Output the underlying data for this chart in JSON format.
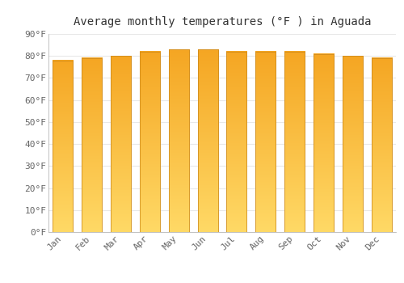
{
  "title": "Average monthly temperatures (°F ) in Aguada",
  "months": [
    "Jan",
    "Feb",
    "Mar",
    "Apr",
    "May",
    "Jun",
    "Jul",
    "Aug",
    "Sep",
    "Oct",
    "Nov",
    "Dec"
  ],
  "values": [
    78,
    79,
    80,
    82,
    83,
    83,
    82,
    82,
    82,
    81,
    80,
    79
  ],
  "bar_color_top": "#F5A623",
  "bar_color_bottom": "#FFD966",
  "bar_edge_color": "#C8851A",
  "background_color": "#FFFFFF",
  "plot_bg_color": "#FFFFFF",
  "grid_color": "#E8E8E8",
  "text_color": "#666666",
  "title_color": "#333333",
  "ylim": [
    0,
    90
  ],
  "yticks": [
    0,
    10,
    20,
    30,
    40,
    50,
    60,
    70,
    80,
    90
  ],
  "ytick_labels": [
    "0°F",
    "10°F",
    "20°F",
    "30°F",
    "40°F",
    "50°F",
    "60°F",
    "70°F",
    "80°F",
    "90°F"
  ],
  "title_fontsize": 10,
  "tick_fontsize": 8,
  "font_family": "monospace",
  "bar_width": 0.7
}
